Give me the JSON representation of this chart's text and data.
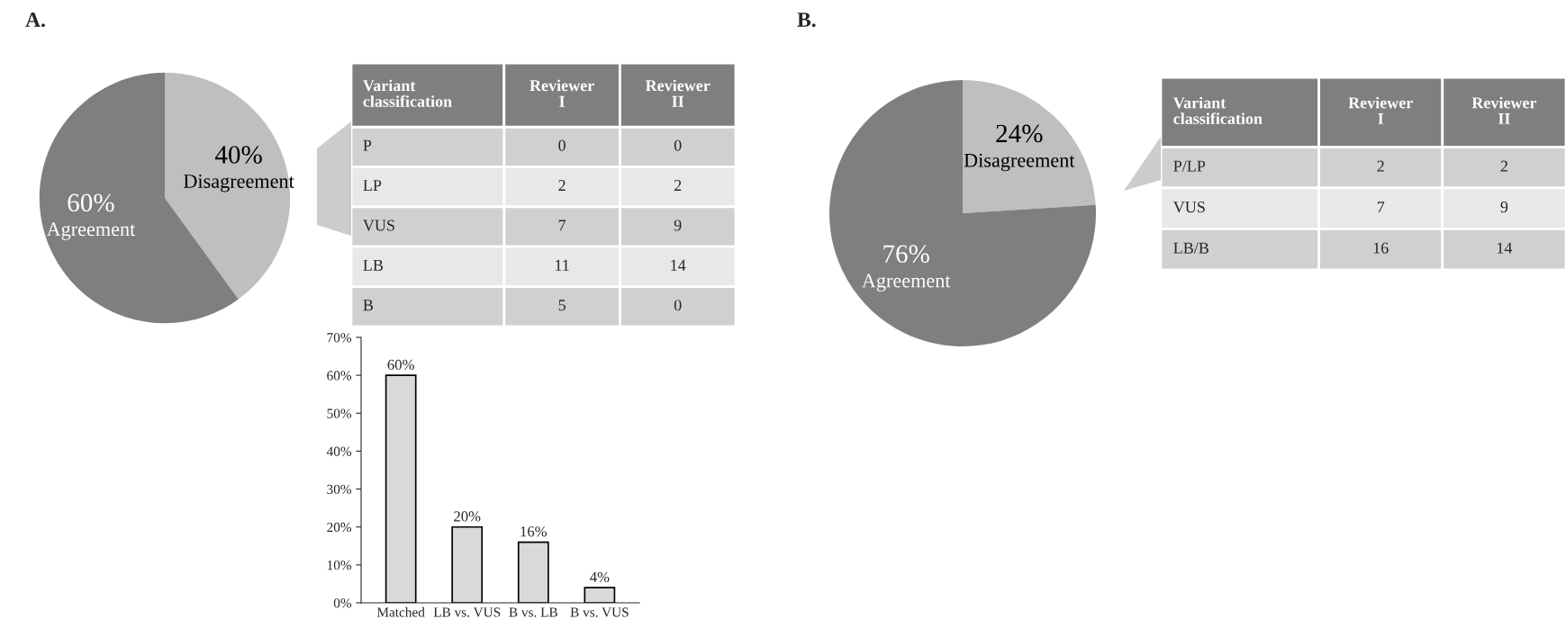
{
  "chart_data": [
    {
      "type": "pie",
      "title": "A.",
      "categories": [
        "Disagreement",
        "Agreement"
      ],
      "values": [
        40,
        60
      ],
      "colors": [
        "#bfbfbf",
        "#7f7f7f"
      ],
      "value_labels": [
        "40%",
        "60%"
      ]
    },
    {
      "type": "heatmap",
      "ylabel": "Variant classification",
      "categories": [
        "Reviewer I",
        "Reviewer II"
      ],
      "y_categories": [
        "P",
        "LP",
        "VUS",
        "LB",
        "B"
      ],
      "cells": [
        [
          0,
          0
        ],
        [
          2,
          2
        ],
        [
          7,
          9
        ],
        [
          11,
          14
        ],
        [
          5,
          0
        ]
      ],
      "data_labels": true
    },
    {
      "type": "bar",
      "categories": [
        "Matched",
        "LB vs. VUS",
        "B vs. LB",
        "B vs. VUS"
      ],
      "values": [
        60,
        20,
        16,
        4
      ],
      "color": "#d9d9d9",
      "ylim": [
        0,
        70
      ],
      "yticks": [
        {
          "value": 0,
          "label": "0%"
        },
        {
          "value": 10,
          "label": "10%"
        },
        {
          "value": 20,
          "label": "20%"
        },
        {
          "value": 30,
          "label": "30%"
        },
        {
          "value": 40,
          "label": "40%"
        },
        {
          "value": 50,
          "label": "50%"
        },
        {
          "value": 60,
          "label": "60%"
        },
        {
          "value": 70,
          "label": "70%"
        }
      ],
      "value_labels": [
        "60%",
        "20%",
        "16%",
        "4%"
      ]
    },
    {
      "type": "pie",
      "title": "B.",
      "categories": [
        "Disagreement",
        "Agreement"
      ],
      "values": [
        24,
        76
      ],
      "colors": [
        "#bfbfbf",
        "#7f7f7f"
      ],
      "value_labels": [
        "24%",
        "76%"
      ]
    },
    {
      "type": "heatmap",
      "ylabel": "Variant classification",
      "categories": [
        "Reviewer I",
        "Reviewer II"
      ],
      "y_categories": [
        "P/LP",
        "VUS",
        "LB/B"
      ],
      "cells": [
        [
          2,
          2
        ],
        [
          7,
          9
        ],
        [
          16,
          14
        ]
      ],
      "data_labels": true
    }
  ]
}
